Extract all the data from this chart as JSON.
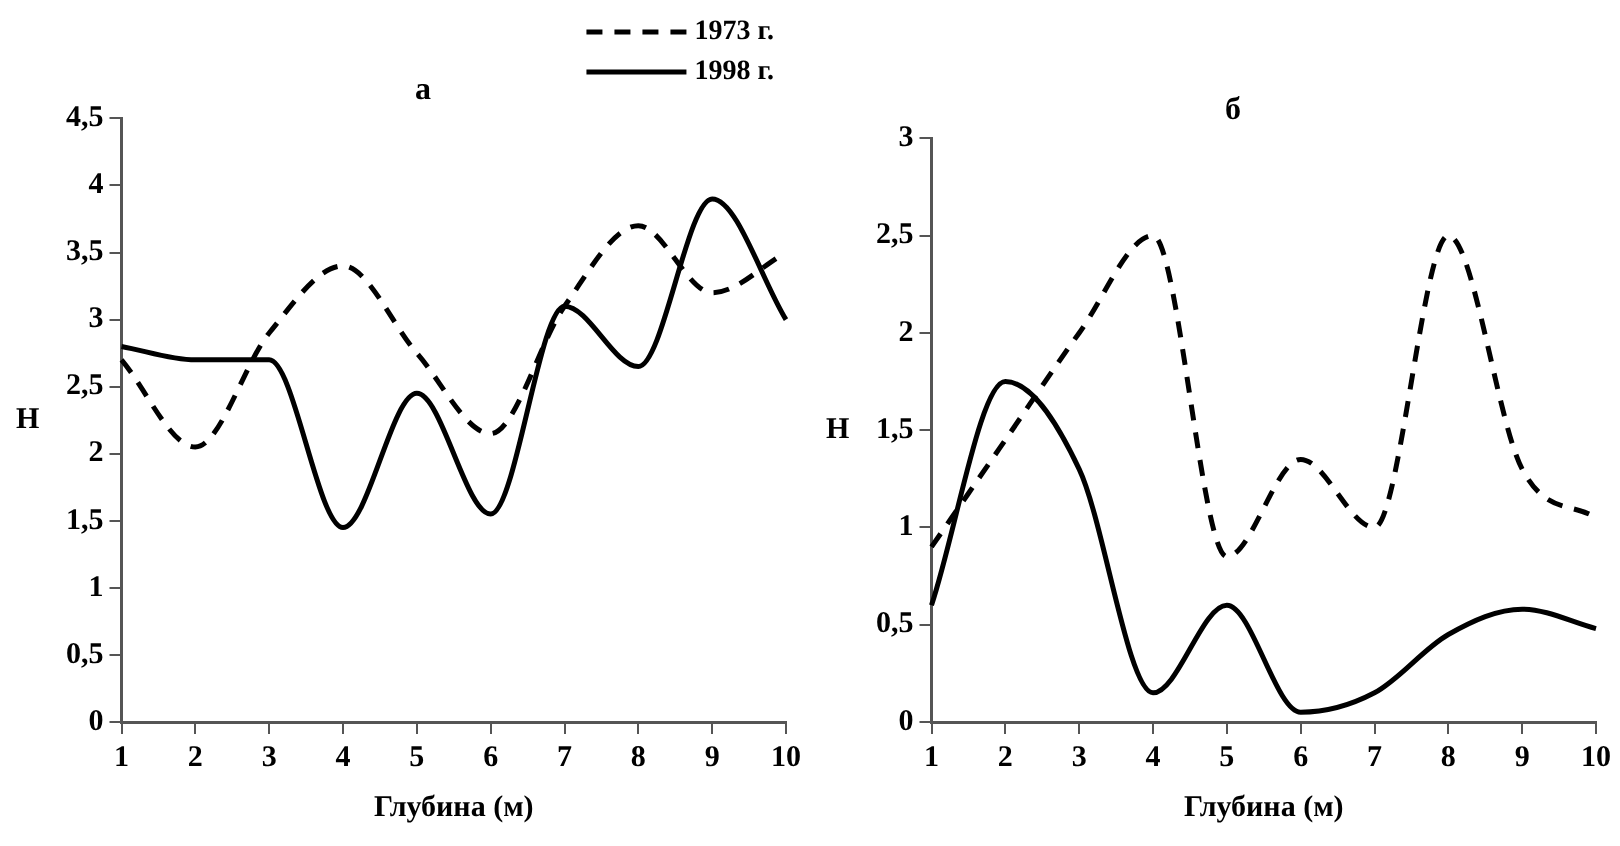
{
  "chart_data": [
    {
      "type": "line",
      "title": "а",
      "xlabel": "Глубина (м)",
      "ylabel": "H",
      "categories": [
        "1",
        "2",
        "3",
        "4",
        "5",
        "6",
        "7",
        "8",
        "9",
        "10"
      ],
      "ylim": [
        0,
        4.5
      ],
      "yticks": [
        {
          "value": 0,
          "label": "0"
        },
        {
          "value": 0.5,
          "label": "0,5"
        },
        {
          "value": 1,
          "label": "1"
        },
        {
          "value": 1.5,
          "label": "1,5"
        },
        {
          "value": 2,
          "label": "2"
        },
        {
          "value": 2.5,
          "label": "2,5"
        },
        {
          "value": 3,
          "label": "3"
        },
        {
          "value": 3.5,
          "label": "3,5"
        },
        {
          "value": 4,
          "label": "4"
        },
        {
          "value": 4.5,
          "label": "4,5"
        }
      ],
      "grid": false,
      "legend": "top right",
      "marker": "none",
      "series": [
        {
          "name": "1973 г.",
          "color": "#000000",
          "line_style": "dashed",
          "values": [
            2.7,
            2.05,
            2.9,
            3.4,
            2.75,
            2.15,
            3.1,
            3.7,
            3.2,
            3.5
          ]
        },
        {
          "name": "1998 г.",
          "color": "#000000",
          "line_style": "solid",
          "values": [
            2.8,
            2.7,
            2.7,
            1.45,
            2.45,
            1.55,
            3.1,
            2.65,
            3.9,
            3.0
          ]
        }
      ]
    },
    {
      "type": "line",
      "title": "б",
      "xlabel": "Глубина (м)",
      "ylabel": "H",
      "categories": [
        "1",
        "2",
        "3",
        "4",
        "5",
        "6",
        "7",
        "8",
        "9",
        "10"
      ],
      "ylim": [
        0,
        3
      ],
      "yticks": [
        {
          "value": 0,
          "label": "0"
        },
        {
          "value": 0.5,
          "label": "0,5"
        },
        {
          "value": 1,
          "label": "1"
        },
        {
          "value": 1.5,
          "label": "1,5"
        },
        {
          "value": 2,
          "label": "2"
        },
        {
          "value": 2.5,
          "label": "2,5"
        },
        {
          "value": 3,
          "label": "3"
        }
      ],
      "grid": false,
      "legend": false,
      "marker": "none",
      "series": [
        {
          "color": "#000000",
          "line_style": "dashed",
          "values": [
            0.9,
            1.45,
            2.0,
            2.5,
            0.85,
            1.35,
            1.0,
            2.5,
            1.3,
            1.05
          ]
        },
        {
          "color": "#000000",
          "line_style": "solid",
          "values": [
            0.6,
            1.75,
            1.3,
            0.15,
            0.6,
            0.05,
            0.15,
            0.45,
            0.58,
            0.48
          ]
        }
      ]
    }
  ]
}
